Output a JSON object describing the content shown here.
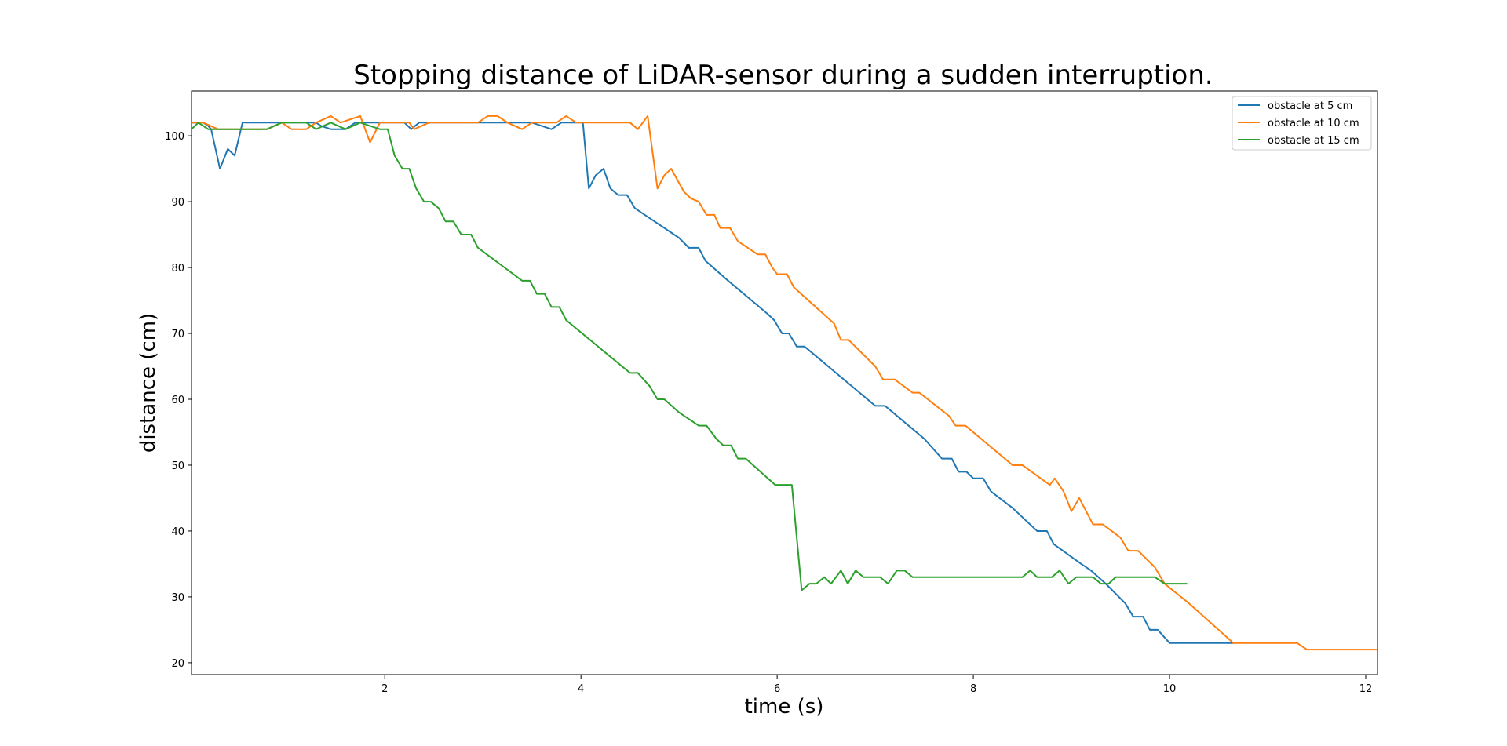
{
  "chart_data": {
    "type": "line",
    "title": "Stopping distance of LiDAR-sensor during a sudden interruption.",
    "xlabel": "time (s)",
    "ylabel": "distance (cm)",
    "xlim": [
      0.03,
      12.12
    ],
    "ylim": [
      18.2,
      106.8
    ],
    "xticks": [
      2,
      4,
      6,
      8,
      10,
      12
    ],
    "yticks": [
      20,
      30,
      40,
      50,
      60,
      70,
      80,
      90,
      100
    ],
    "grid": false,
    "legend": "top-right",
    "series": [
      {
        "name": "obstacle at 5 cm",
        "color": "#1f77b4",
        "points": [
          [
            0.03,
            102
          ],
          [
            0.15,
            102
          ],
          [
            0.2,
            101.5
          ],
          [
            0.23,
            101
          ],
          [
            0.32,
            95
          ],
          [
            0.4,
            98
          ],
          [
            0.47,
            97
          ],
          [
            0.55,
            102
          ],
          [
            0.7,
            102
          ],
          [
            1.0,
            102
          ],
          [
            1.3,
            102
          ],
          [
            1.35,
            101.5
          ],
          [
            1.45,
            101
          ],
          [
            1.6,
            101
          ],
          [
            1.7,
            102
          ],
          [
            2.0,
            102
          ],
          [
            2.2,
            102
          ],
          [
            2.27,
            101
          ],
          [
            2.35,
            102
          ],
          [
            2.45,
            102
          ],
          [
            3.0,
            102
          ],
          [
            3.5,
            102
          ],
          [
            3.7,
            101
          ],
          [
            3.8,
            102
          ],
          [
            3.95,
            102
          ],
          [
            4.02,
            102
          ],
          [
            4.08,
            92
          ],
          [
            4.15,
            94
          ],
          [
            4.23,
            95
          ],
          [
            4.3,
            92
          ],
          [
            4.38,
            91
          ],
          [
            4.47,
            91
          ],
          [
            4.55,
            89
          ],
          [
            4.7,
            87.5
          ],
          [
            5.0,
            84.5
          ],
          [
            5.1,
            83
          ],
          [
            5.2,
            83
          ],
          [
            5.27,
            81
          ],
          [
            5.5,
            78
          ],
          [
            5.9,
            73
          ],
          [
            5.97,
            72
          ],
          [
            6.05,
            70
          ],
          [
            6.12,
            70
          ],
          [
            6.2,
            68
          ],
          [
            6.28,
            68
          ],
          [
            6.6,
            64
          ],
          [
            7.0,
            59
          ],
          [
            7.1,
            59
          ],
          [
            7.5,
            54
          ],
          [
            7.68,
            51
          ],
          [
            7.78,
            51
          ],
          [
            7.85,
            49
          ],
          [
            7.93,
            49
          ],
          [
            8.0,
            48
          ],
          [
            8.1,
            48
          ],
          [
            8.18,
            46
          ],
          [
            8.4,
            43.5
          ],
          [
            8.65,
            40
          ],
          [
            8.75,
            40
          ],
          [
            8.82,
            38
          ],
          [
            9.1,
            35
          ],
          [
            9.2,
            34
          ],
          [
            9.35,
            32
          ],
          [
            9.55,
            29
          ],
          [
            9.63,
            27
          ],
          [
            9.73,
            27
          ],
          [
            9.8,
            25
          ],
          [
            9.88,
            25
          ],
          [
            10.0,
            23
          ],
          [
            10.1,
            23
          ],
          [
            10.65,
            23
          ]
        ]
      },
      {
        "name": "obstacle at 10 cm",
        "color": "#ff7f0e",
        "points": [
          [
            0.03,
            102
          ],
          [
            0.15,
            102
          ],
          [
            0.3,
            101
          ],
          [
            0.8,
            101
          ],
          [
            0.95,
            102
          ],
          [
            1.05,
            101
          ],
          [
            1.2,
            101
          ],
          [
            1.3,
            102
          ],
          [
            1.45,
            103
          ],
          [
            1.55,
            102
          ],
          [
            1.75,
            103
          ],
          [
            1.85,
            99
          ],
          [
            1.95,
            102
          ],
          [
            2.25,
            102
          ],
          [
            2.3,
            101
          ],
          [
            2.45,
            102
          ],
          [
            2.95,
            102
          ],
          [
            3.05,
            103
          ],
          [
            3.15,
            103
          ],
          [
            3.25,
            102
          ],
          [
            3.4,
            101
          ],
          [
            3.5,
            102
          ],
          [
            3.75,
            102
          ],
          [
            3.85,
            103
          ],
          [
            3.95,
            102
          ],
          [
            4.5,
            102
          ],
          [
            4.58,
            101
          ],
          [
            4.68,
            103
          ],
          [
            4.78,
            92
          ],
          [
            4.85,
            94
          ],
          [
            4.92,
            95
          ],
          [
            5.05,
            91.5
          ],
          [
            5.12,
            90.5
          ],
          [
            5.2,
            90
          ],
          [
            5.28,
            88
          ],
          [
            5.36,
            88
          ],
          [
            5.42,
            86
          ],
          [
            5.52,
            86
          ],
          [
            5.6,
            84
          ],
          [
            5.8,
            82
          ],
          [
            5.88,
            82
          ],
          [
            5.95,
            80
          ],
          [
            6.0,
            79
          ],
          [
            6.1,
            79
          ],
          [
            6.17,
            77
          ],
          [
            6.58,
            71.5
          ],
          [
            6.65,
            69
          ],
          [
            6.73,
            69
          ],
          [
            7.0,
            65
          ],
          [
            7.08,
            63
          ],
          [
            7.2,
            63
          ],
          [
            7.38,
            61
          ],
          [
            7.45,
            61
          ],
          [
            7.75,
            57.5
          ],
          [
            7.82,
            56
          ],
          [
            7.92,
            56
          ],
          [
            8.4,
            50
          ],
          [
            8.5,
            50
          ],
          [
            8.78,
            47
          ],
          [
            8.83,
            48
          ],
          [
            8.92,
            46
          ],
          [
            9.0,
            43
          ],
          [
            9.08,
            45
          ],
          [
            9.22,
            41
          ],
          [
            9.32,
            41
          ],
          [
            9.5,
            39
          ],
          [
            9.58,
            37
          ],
          [
            9.68,
            37
          ],
          [
            9.85,
            34.5
          ],
          [
            9.95,
            32
          ],
          [
            10.2,
            29
          ],
          [
            10.65,
            23
          ],
          [
            11.3,
            23
          ],
          [
            11.4,
            22
          ],
          [
            12.12,
            22
          ]
        ]
      },
      {
        "name": "obstacle at 15 cm",
        "color": "#2ca02c",
        "points": [
          [
            0.03,
            101
          ],
          [
            0.1,
            102
          ],
          [
            0.2,
            101
          ],
          [
            0.5,
            101
          ],
          [
            0.8,
            101
          ],
          [
            0.95,
            102
          ],
          [
            1.2,
            102
          ],
          [
            1.3,
            101
          ],
          [
            1.45,
            102
          ],
          [
            1.6,
            101
          ],
          [
            1.75,
            102
          ],
          [
            1.95,
            101
          ],
          [
            2.03,
            101
          ],
          [
            2.1,
            97
          ],
          [
            2.18,
            95
          ],
          [
            2.25,
            95
          ],
          [
            2.32,
            92
          ],
          [
            2.4,
            90
          ],
          [
            2.47,
            90
          ],
          [
            2.55,
            89
          ],
          [
            2.62,
            87
          ],
          [
            2.7,
            87
          ],
          [
            2.78,
            85
          ],
          [
            2.88,
            85
          ],
          [
            2.95,
            83
          ],
          [
            3.4,
            78
          ],
          [
            3.48,
            78
          ],
          [
            3.55,
            76
          ],
          [
            3.63,
            76
          ],
          [
            3.7,
            74
          ],
          [
            3.78,
            74
          ],
          [
            3.85,
            72
          ],
          [
            4.5,
            64
          ],
          [
            4.58,
            64
          ],
          [
            4.7,
            62
          ],
          [
            4.78,
            60
          ],
          [
            4.85,
            60
          ],
          [
            5.0,
            58
          ],
          [
            5.2,
            56
          ],
          [
            5.28,
            56
          ],
          [
            5.38,
            54
          ],
          [
            5.45,
            53
          ],
          [
            5.53,
            53
          ],
          [
            5.6,
            51
          ],
          [
            5.68,
            51
          ],
          [
            5.98,
            47
          ],
          [
            6.15,
            47
          ],
          [
            6.25,
            31
          ],
          [
            6.33,
            32
          ],
          [
            6.4,
            32
          ],
          [
            6.48,
            33
          ],
          [
            6.55,
            32
          ],
          [
            6.65,
            34
          ],
          [
            6.72,
            32
          ],
          [
            6.8,
            34
          ],
          [
            6.88,
            33
          ],
          [
            7.05,
            33
          ],
          [
            7.13,
            32
          ],
          [
            7.22,
            34
          ],
          [
            7.3,
            34
          ],
          [
            7.38,
            33
          ],
          [
            8.5,
            33
          ],
          [
            8.58,
            34
          ],
          [
            8.65,
            33
          ],
          [
            8.8,
            33
          ],
          [
            8.88,
            34
          ],
          [
            8.97,
            32
          ],
          [
            9.05,
            33
          ],
          [
            9.22,
            33
          ],
          [
            9.3,
            32
          ],
          [
            9.38,
            32
          ],
          [
            9.45,
            33
          ],
          [
            9.85,
            33
          ],
          [
            9.95,
            32
          ],
          [
            10.18,
            32
          ]
        ]
      }
    ]
  }
}
